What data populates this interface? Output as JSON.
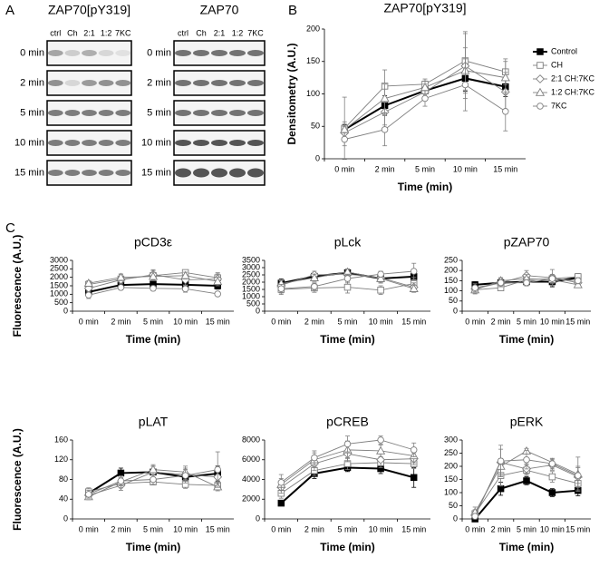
{
  "panel_a": {
    "label": "A",
    "blots": [
      {
        "title": "ZAP70[pY319]",
        "lanes": [
          "ctrl",
          "Ch",
          "2:1",
          "1:2",
          "7KC"
        ],
        "times": [
          "0 min",
          "2 min",
          "5 min",
          "10 min",
          "15 min"
        ]
      },
      {
        "title": "ZAP70",
        "lanes": [
          "ctrl",
          "Ch",
          "2:1",
          "1:2",
          "7KC"
        ],
        "times": [
          "0 min",
          "2 min",
          "5 min",
          "10 min",
          "15 min"
        ]
      }
    ]
  },
  "chart_data": [
    {
      "type": "line",
      "panel_label": "B",
      "title": "ZAP70[pY319]",
      "y_label": "Densitometry (A.U.)",
      "x_label": "Time (min)",
      "categories": [
        "0 min",
        "2 min",
        "5 min",
        "10 min",
        "15 min"
      ],
      "ylim": [
        0,
        200
      ],
      "yticks": [
        0,
        50,
        100,
        150,
        200
      ],
      "legend": "right",
      "series": [
        {
          "name": "Control",
          "marker": "filled-square",
          "color": "#000000",
          "values": [
            45,
            82,
            105,
            124,
            111
          ],
          "errors": [
            8,
            15,
            10,
            20,
            15
          ]
        },
        {
          "name": "CH",
          "marker": "square",
          "color": "#7f7f7f",
          "values": [
            47,
            112,
            115,
            151,
            134
          ],
          "errors": [
            48,
            25,
            8,
            45,
            20
          ]
        },
        {
          "name": "2:1 CH:7KC",
          "marker": "diamond",
          "color": "#7f7f7f",
          "values": [
            40,
            72,
            103,
            143,
            103
          ],
          "errors": [
            10,
            20,
            12,
            50,
            30
          ]
        },
        {
          "name": "1:2 CH:7KC",
          "marker": "triangle",
          "color": "#7f7f7f",
          "values": [
            45,
            93,
            110,
            136,
            125
          ],
          "errors": [
            12,
            22,
            10,
            35,
            25
          ]
        },
        {
          "name": "7KC",
          "marker": "circle",
          "color": "#7f7f7f",
          "values": [
            30,
            45,
            93,
            114,
            73
          ],
          "errors": [
            10,
            25,
            12,
            40,
            30
          ]
        }
      ]
    },
    {
      "type": "line",
      "panel_label": "C",
      "title": "pCD3ε",
      "y_label": "Fluorescence (A.U.)",
      "x_label": "Time (min)",
      "categories": [
        "0 min",
        "2 min",
        "5 min",
        "10 min",
        "15 min"
      ],
      "ylim": [
        0,
        3000
      ],
      "yticks": [
        0,
        500,
        1000,
        1500,
        2000,
        2500,
        3000
      ],
      "series": [
        {
          "marker": "filled-square",
          "color": "#000000",
          "values": [
            1130,
            1550,
            1600,
            1560,
            1500
          ],
          "errors": [
            150,
            200,
            250,
            300,
            200
          ]
        },
        {
          "marker": "square",
          "color": "#7f7f7f",
          "values": [
            1580,
            1900,
            2100,
            2280,
            1970
          ],
          "errors": [
            150,
            250,
            300,
            150,
            300
          ]
        },
        {
          "marker": "diamond",
          "color": "#7f7f7f",
          "values": [
            1350,
            1850,
            2150,
            1850,
            1900
          ],
          "errors": [
            150,
            200,
            300,
            300,
            300
          ]
        },
        {
          "marker": "triangle",
          "color": "#7f7f7f",
          "values": [
            1650,
            2000,
            2050,
            2100,
            1750
          ],
          "errors": [
            150,
            200,
            250,
            200,
            250
          ]
        },
        {
          "marker": "circle",
          "color": "#7f7f7f",
          "values": [
            950,
            1400,
            1350,
            1320,
            1020
          ],
          "errors": [
            200,
            150,
            150,
            200,
            60
          ]
        }
      ]
    },
    {
      "type": "line",
      "title": "pLck",
      "x_label": "Time (min)",
      "categories": [
        "0 min",
        "2 min",
        "5 min",
        "10 min",
        "15 min"
      ],
      "ylim": [
        0,
        3500
      ],
      "yticks": [
        0,
        500,
        1000,
        1500,
        2000,
        2500,
        3000,
        3500
      ],
      "series": [
        {
          "marker": "filled-square",
          "color": "#000000",
          "values": [
            1930,
            2400,
            2650,
            2250,
            2380
          ],
          "errors": [
            300,
            200,
            250,
            300,
            350
          ]
        },
        {
          "marker": "square",
          "color": "#7f7f7f",
          "values": [
            1500,
            1600,
            1650,
            1450,
            1900
          ],
          "errors": [
            350,
            300,
            400,
            300,
            450
          ]
        },
        {
          "marker": "diamond",
          "color": "#7f7f7f",
          "values": [
            1800,
            2500,
            2550,
            2300,
            1650
          ],
          "errors": [
            300,
            250,
            300,
            250,
            300
          ]
        },
        {
          "marker": "triangle",
          "color": "#7f7f7f",
          "values": [
            1900,
            2300,
            2700,
            2250,
            1550
          ],
          "errors": [
            250,
            250,
            200,
            300,
            250
          ]
        },
        {
          "marker": "circle",
          "color": "#7f7f7f",
          "values": [
            1550,
            1700,
            2250,
            2550,
            2750
          ],
          "errors": [
            300,
            250,
            300,
            200,
            550
          ]
        }
      ]
    },
    {
      "type": "line",
      "title": "pZAP70",
      "x_label": "Time (min)",
      "categories": [
        "0 min",
        "2 min",
        "5 min",
        "10 min",
        "15 min"
      ],
      "ylim": [
        0,
        250
      ],
      "yticks": [
        0,
        50,
        100,
        150,
        200,
        250
      ],
      "series": [
        {
          "marker": "filled-square",
          "color": "#000000",
          "values": [
            130,
            140,
            145,
            145,
            165
          ],
          "errors": [
            15,
            20,
            20,
            25,
            15
          ]
        },
        {
          "marker": "square",
          "color": "#7f7f7f",
          "values": [
            105,
            115,
            155,
            160,
            170
          ],
          "errors": [
            20,
            10,
            20,
            20,
            15
          ]
        },
        {
          "marker": "diamond",
          "color": "#7f7f7f",
          "values": [
            110,
            140,
            175,
            165,
            140
          ],
          "errors": [
            15,
            20,
            25,
            40,
            15
          ]
        },
        {
          "marker": "triangle",
          "color": "#7f7f7f",
          "values": [
            105,
            150,
            160,
            155,
            130
          ],
          "errors": [
            15,
            15,
            20,
            20,
            10
          ]
        },
        {
          "marker": "circle",
          "color": "#7f7f7f",
          "values": [
            115,
            140,
            140,
            160,
            150
          ],
          "errors": [
            20,
            15,
            15,
            20,
            15
          ]
        }
      ]
    },
    {
      "type": "line",
      "title": "pLAT",
      "y_label": "Fluorescence (A.U.)",
      "x_label": "Time (min)",
      "categories": [
        "0 min",
        "2 min",
        "5 min",
        "10 min",
        "15 min"
      ],
      "ylim": [
        0,
        160
      ],
      "yticks": [
        0,
        40,
        80,
        120,
        160
      ],
      "series": [
        {
          "marker": "filled-square",
          "color": "#000000",
          "values": [
            52,
            93,
            95,
            85,
            92
          ],
          "errors": [
            8,
            10,
            12,
            10,
            15
          ]
        },
        {
          "marker": "square",
          "color": "#7f7f7f",
          "values": [
            55,
            72,
            75,
            70,
            68
          ],
          "errors": [
            8,
            8,
            6,
            8,
            8
          ]
        },
        {
          "marker": "diamond",
          "color": "#7f7f7f",
          "values": [
            48,
            68,
            95,
            90,
            85
          ],
          "errors": [
            6,
            10,
            12,
            10,
            12
          ]
        },
        {
          "marker": "triangle",
          "color": "#7f7f7f",
          "values": [
            45,
            75,
            100,
            95,
            65
          ],
          "errors": [
            6,
            12,
            10,
            12,
            8
          ]
        },
        {
          "marker": "circle",
          "color": "#7f7f7f",
          "values": [
            50,
            77,
            80,
            88,
            100
          ],
          "errors": [
            8,
            10,
            10,
            15,
            36
          ]
        }
      ]
    },
    {
      "type": "line",
      "title": "pCREB",
      "x_label": "Time (min)",
      "categories": [
        "0 min",
        "2 min",
        "5 min",
        "10 min",
        "15 min"
      ],
      "ylim": [
        0,
        8000
      ],
      "yticks": [
        0,
        2000,
        4000,
        6000,
        8000
      ],
      "series": [
        {
          "marker": "filled-square",
          "color": "#000000",
          "values": [
            1600,
            4600,
            5200,
            5100,
            4200
          ],
          "errors": [
            200,
            500,
            400,
            500,
            1000
          ]
        },
        {
          "marker": "square",
          "color": "#7f7f7f",
          "values": [
            2600,
            4900,
            5600,
            5700,
            5600
          ],
          "errors": [
            500,
            500,
            600,
            500,
            500
          ]
        },
        {
          "marker": "diamond",
          "color": "#7f7f7f",
          "values": [
            3200,
            5600,
            6600,
            6000,
            6100
          ],
          "errors": [
            600,
            700,
            800,
            600,
            600
          ]
        },
        {
          "marker": "triangle",
          "color": "#7f7f7f",
          "values": [
            3500,
            6000,
            7000,
            6900,
            6400
          ],
          "errors": [
            600,
            700,
            900,
            600,
            700
          ]
        },
        {
          "marker": "circle",
          "color": "#7f7f7f",
          "values": [
            3700,
            6200,
            7600,
            8000,
            7000
          ],
          "errors": [
            800,
            700,
            800,
            400,
            700
          ]
        }
      ]
    },
    {
      "type": "line",
      "title": "pERK",
      "x_label": "Time (min)",
      "categories": [
        "0 min",
        "2 min",
        "5 min",
        "10 min",
        "15 min"
      ],
      "ylim": [
        0,
        300
      ],
      "yticks": [
        0,
        50,
        100,
        150,
        200,
        250,
        300
      ],
      "series": [
        {
          "marker": "filled-square",
          "color": "#000000",
          "values": [
            0,
            115,
            145,
            100,
            108
          ],
          "errors": [
            5,
            25,
            15,
            15,
            20
          ]
        },
        {
          "marker": "square",
          "color": "#7f7f7f",
          "values": [
            20,
            165,
            185,
            160,
            135
          ],
          "errors": [
            15,
            40,
            20,
            20,
            25
          ]
        },
        {
          "marker": "diamond",
          "color": "#7f7f7f",
          "values": [
            15,
            215,
            190,
            205,
            160
          ],
          "errors": [
            15,
            50,
            20,
            20,
            40
          ]
        },
        {
          "marker": "triangle",
          "color": "#7f7f7f",
          "values": [
            25,
            200,
            258,
            215,
            170
          ],
          "errors": [
            20,
            30,
            10,
            15,
            65
          ]
        },
        {
          "marker": "circle",
          "color": "#7f7f7f",
          "values": [
            10,
            220,
            225,
            210,
            165
          ],
          "errors": [
            10,
            60,
            35,
            20,
            30
          ]
        }
      ]
    }
  ]
}
